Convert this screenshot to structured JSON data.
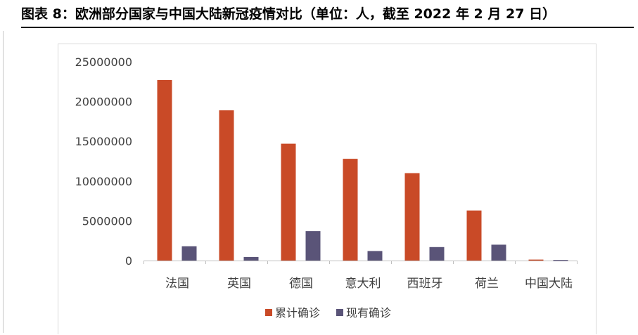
{
  "figure": {
    "title": "图表 8：欧洲部分国家与中国大陆新冠疫情对比（单位：人，截至 2022 年 2 月 27 日）"
  },
  "chart_data": {
    "type": "bar",
    "title": "",
    "xlabel": "",
    "ylabel": "",
    "categories": [
      "法国",
      "英国",
      "德国",
      "意大利",
      "西班牙",
      "荷兰",
      "中国大陆"
    ],
    "series": [
      {
        "name": "累计确诊",
        "color": "#c94a27",
        "values": [
          22700000,
          18900000,
          14700000,
          12800000,
          11000000,
          6300000,
          120000
        ]
      },
      {
        "name": "现有确诊",
        "color": "#5a5478",
        "values": [
          1800000,
          450000,
          3700000,
          1200000,
          1700000,
          2000000,
          60000
        ]
      }
    ],
    "ylim": [
      0,
      25000000
    ],
    "yticks": [
      "25000000",
      "20000000",
      "15000000",
      "10000000",
      "5000000",
      "0"
    ],
    "grid": false,
    "legend": "bottom"
  }
}
